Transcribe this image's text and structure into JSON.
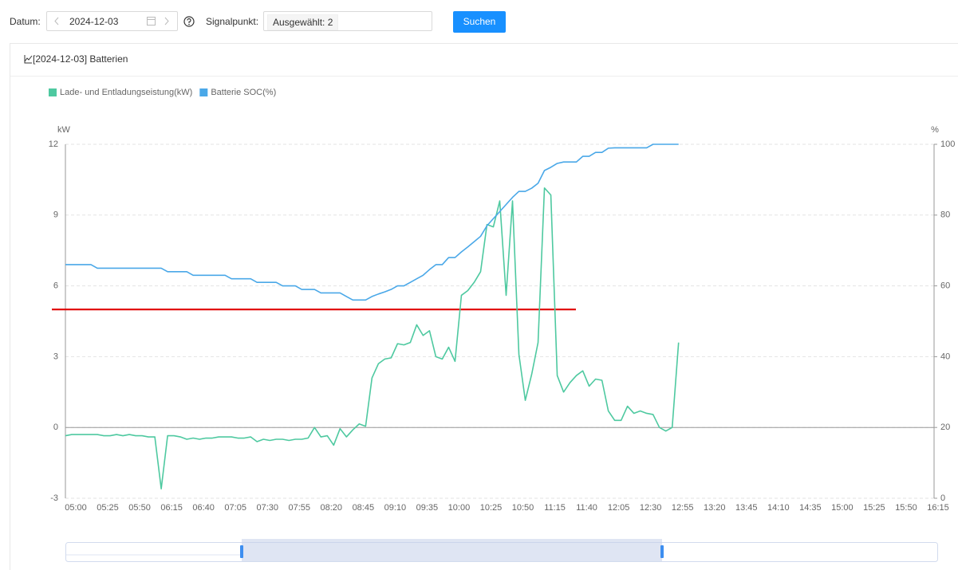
{
  "toolbar": {
    "date_label": "Datum:",
    "date_value": "2024-12-03",
    "signal_label": "Signalpunkt:",
    "signal_tag": "Ausgewählt: 2",
    "search_button": "Suchen"
  },
  "panel_title": "[2024-12-03] Batterien",
  "chart_data": {
    "type": "line",
    "ylabel": "kW",
    "y2label": "%",
    "categories": [
      "05:00",
      null,
      null,
      null,
      null,
      "05:25",
      null,
      null,
      null,
      null,
      "05:50",
      null,
      null,
      null,
      null,
      "06:15",
      null,
      null,
      null,
      null,
      "06:40",
      null,
      null,
      null,
      null,
      "07:05",
      null,
      null,
      null,
      null,
      "07:30",
      null,
      null,
      null,
      null,
      "07:55",
      null,
      null,
      null,
      null,
      "08:20",
      null,
      null,
      null,
      null,
      "08:45",
      null,
      null,
      null,
      null,
      "09:10",
      null,
      null,
      null,
      null,
      "09:35",
      null,
      null,
      null,
      null,
      "10:00",
      null,
      null,
      null,
      null,
      "10:25",
      null,
      null,
      null,
      null,
      "10:50",
      null,
      null,
      null,
      null,
      "11:15",
      null,
      null,
      null,
      null,
      "11:40",
      null,
      null,
      null,
      null,
      "12:05",
      null,
      null,
      null,
      null,
      "12:30",
      null,
      null,
      null,
      null,
      "12:55",
      null,
      null,
      null,
      null,
      "13:20",
      null,
      null,
      null,
      null,
      "13:45",
      null,
      null,
      null,
      null,
      "14:10",
      null,
      null,
      null,
      null,
      "14:35",
      null,
      null,
      null,
      null,
      "15:00",
      null,
      null,
      null,
      null,
      "15:25",
      null,
      null,
      null,
      null,
      "15:50",
      null,
      null,
      null,
      null,
      "16:15",
      null
    ],
    "series": [
      {
        "name": "Lade- und Entladungseistung(kW)",
        "color": "#4ec9a0",
        "values": [
          -0.35,
          -0.3,
          -0.3,
          -0.3,
          -0.3,
          -0.3,
          -0.35,
          -0.35,
          -0.3,
          -0.35,
          -0.3,
          -0.35,
          -0.35,
          -0.4,
          -0.4,
          -2.6,
          -0.35,
          -0.35,
          -0.4,
          -0.5,
          -0.45,
          -0.5,
          -0.45,
          -0.45,
          -0.4,
          -0.4,
          -0.4,
          -0.45,
          -0.45,
          -0.4,
          -0.6,
          -0.5,
          -0.55,
          -0.5,
          -0.5,
          -0.55,
          -0.5,
          -0.5,
          -0.45,
          0,
          -0.4,
          -0.35,
          -0.75,
          -0.05,
          -0.4,
          -0.1,
          0.15,
          0.05,
          2.1,
          2.7,
          2.9,
          2.95,
          3.55,
          3.5,
          3.6,
          4.35,
          3.9,
          4.1,
          3.0,
          2.9,
          3.4,
          2.8,
          5.6,
          5.8,
          6.15,
          6.6,
          8.6,
          8.5,
          9.6,
          5.6,
          9.6,
          3.1,
          1.15,
          2.25,
          3.6,
          10.15,
          9.85,
          2.2,
          1.5,
          1.9,
          2.2,
          2.4,
          1.75,
          2.05,
          2.0,
          0.7,
          0.3,
          0.3,
          0.9,
          0.6,
          0.7,
          0.6,
          0.55,
          0,
          -0.15,
          0,
          3.6,
          null,
          null,
          null,
          null,
          null,
          null,
          null,
          null,
          null,
          null,
          null,
          null,
          null,
          null,
          null,
          null,
          null,
          null,
          null,
          null,
          null,
          null,
          null,
          null,
          null,
          null,
          null,
          null,
          null,
          null,
          null,
          null,
          null,
          null,
          null,
          null,
          null,
          null,
          null,
          null
        ]
      },
      {
        "name": "Batterie SOC(%)",
        "color": "#4aa8e8",
        "axis": "y2",
        "values": [
          66,
          66,
          66,
          66,
          66,
          65,
          65,
          65,
          65,
          65,
          65,
          65,
          65,
          65,
          65,
          65,
          64,
          64,
          64,
          64,
          63,
          63,
          63,
          63,
          63,
          63,
          62,
          62,
          62,
          62,
          61,
          61,
          61,
          61,
          60,
          60,
          60,
          59,
          59,
          59,
          58,
          58,
          58,
          58,
          57,
          56,
          56,
          56,
          57,
          57.7,
          58.3,
          59,
          60,
          60,
          61,
          62,
          63,
          64.6,
          66,
          66,
          68,
          68,
          69.6,
          71,
          72.5,
          74,
          77,
          79,
          81,
          83,
          85,
          86.7,
          86.7,
          87.6,
          89,
          92.6,
          93.5,
          94.6,
          95,
          95,
          95,
          96.6,
          96.6,
          97.7,
          97.7,
          98.9,
          99,
          99,
          99,
          99,
          99,
          99,
          100,
          100,
          100,
          100,
          100,
          null,
          null,
          null,
          null,
          null,
          null,
          null,
          null,
          null,
          null,
          null,
          null,
          null,
          null,
          null,
          null,
          null,
          null,
          null,
          null,
          null,
          null,
          null,
          null,
          null,
          null,
          null,
          null,
          null,
          null,
          null,
          null,
          null,
          null,
          null,
          null,
          null,
          null,
          null,
          null
        ]
      }
    ],
    "ylim": [
      -3,
      12
    ],
    "yticks": [
      -3,
      0,
      3,
      6,
      9,
      12
    ],
    "y2lim": [
      0,
      100
    ],
    "y2ticks": [
      0,
      20,
      40,
      60,
      80,
      100
    ],
    "grid": true,
    "legend": "top-left",
    "reference_line": {
      "value": 5,
      "color": "#e00000"
    }
  }
}
